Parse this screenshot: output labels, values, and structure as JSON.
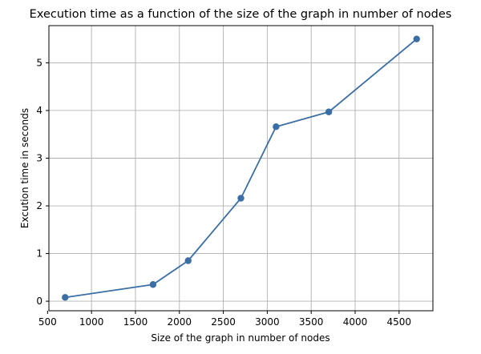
{
  "chart_data": {
    "type": "line",
    "title": "Execution time as a function of the size of the graph in number of nodes",
    "xlabel": "Size of the graph in number of nodes",
    "ylabel": "Excution time in seconds",
    "x": [
      700,
      1700,
      2100,
      2700,
      3100,
      3700,
      4700
    ],
    "series": [
      {
        "values": [
          0.08,
          0.35,
          0.85,
          2.16,
          3.66,
          3.97,
          5.5
        ],
        "color": "#3a6ea5",
        "marker": "circle"
      }
    ],
    "xlim": [
      515,
      4885
    ],
    "ylim": [
      -0.2,
      5.78
    ],
    "xticks": [
      500,
      1000,
      1500,
      2000,
      2500,
      3000,
      3500,
      4000,
      4500
    ],
    "xtick_labels": [
      "500",
      "1000",
      "1500",
      "2000",
      "2500",
      "3000",
      "3500",
      "4000",
      "4500"
    ],
    "yticks": [
      0,
      1,
      2,
      3,
      4,
      5
    ],
    "ytick_labels": [
      "0",
      "1",
      "2",
      "3",
      "4",
      "5"
    ],
    "grid": true,
    "legend": "none"
  }
}
